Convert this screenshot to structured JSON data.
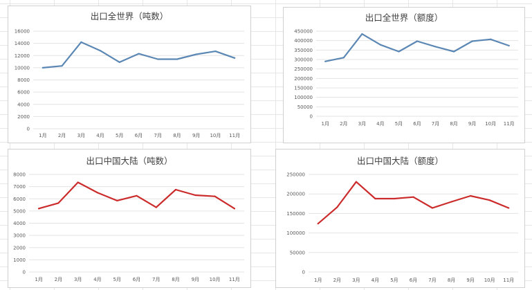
{
  "sheet": {
    "grid_color": "#e6e6e6"
  },
  "chart_data": [
    {
      "type": "line",
      "title": "出口全世界（吨数）",
      "categories": [
        "1月",
        "2月",
        "3月",
        "4月",
        "5月",
        "6月",
        "7月",
        "8月",
        "9月",
        "10月",
        "11月"
      ],
      "series": [
        {
          "values": [
            10000,
            10300,
            14200,
            12800,
            10900,
            12300,
            11400,
            11400,
            12200,
            12700,
            11600
          ],
          "color": "#5b87b4"
        }
      ],
      "yticks": [
        0,
        2000,
        4000,
        6000,
        8000,
        10000,
        12000,
        14000,
        16000
      ],
      "ylim": [
        0,
        16000
      ],
      "grid": true
    },
    {
      "type": "line",
      "title": "出口全世界（额度）",
      "categories": [
        "1月",
        "2月",
        "3月",
        "4月",
        "5月",
        "6月",
        "7月",
        "8月",
        "9月",
        "10月",
        "11月"
      ],
      "series": [
        {
          "values": [
            290000,
            310000,
            435000,
            378000,
            342000,
            397000,
            368000,
            342000,
            397000,
            407000,
            373000
          ],
          "color": "#5b87b4"
        }
      ],
      "yticks": [
        0,
        50000,
        100000,
        150000,
        200000,
        250000,
        300000,
        350000,
        400000,
        450000
      ],
      "ylim": [
        0,
        450000
      ],
      "grid": true
    },
    {
      "type": "line",
      "title": "出口中国大陆（吨数）",
      "categories": [
        "1月",
        "2月",
        "3月",
        "4月",
        "5月",
        "6月",
        "7月",
        "8月",
        "9月",
        "10月",
        "11月"
      ],
      "series": [
        {
          "values": [
            5200,
            5650,
            7350,
            6500,
            5850,
            6250,
            5300,
            6750,
            6300,
            6200,
            5200
          ],
          "color": "#cc2b2b"
        }
      ],
      "yticks": [
        0,
        1000,
        2000,
        3000,
        4000,
        5000,
        6000,
        7000,
        8000
      ],
      "ylim": [
        0,
        8000
      ],
      "grid": true
    },
    {
      "type": "line",
      "title": "出口中国大陆（额度）",
      "categories": [
        "1月",
        "2月",
        "3月",
        "4月",
        "5月",
        "6月",
        "7月",
        "8月",
        "9月",
        "10月",
        "11月"
      ],
      "series": [
        {
          "values": [
            124000,
            166000,
            231000,
            188000,
            188000,
            192000,
            164000,
            180000,
            195000,
            184000,
            164000
          ],
          "color": "#cc2b2b"
        }
      ],
      "yticks": [
        0,
        50000,
        100000,
        150000,
        200000,
        250000
      ],
      "ylim": [
        0,
        250000
      ],
      "grid": true
    }
  ]
}
